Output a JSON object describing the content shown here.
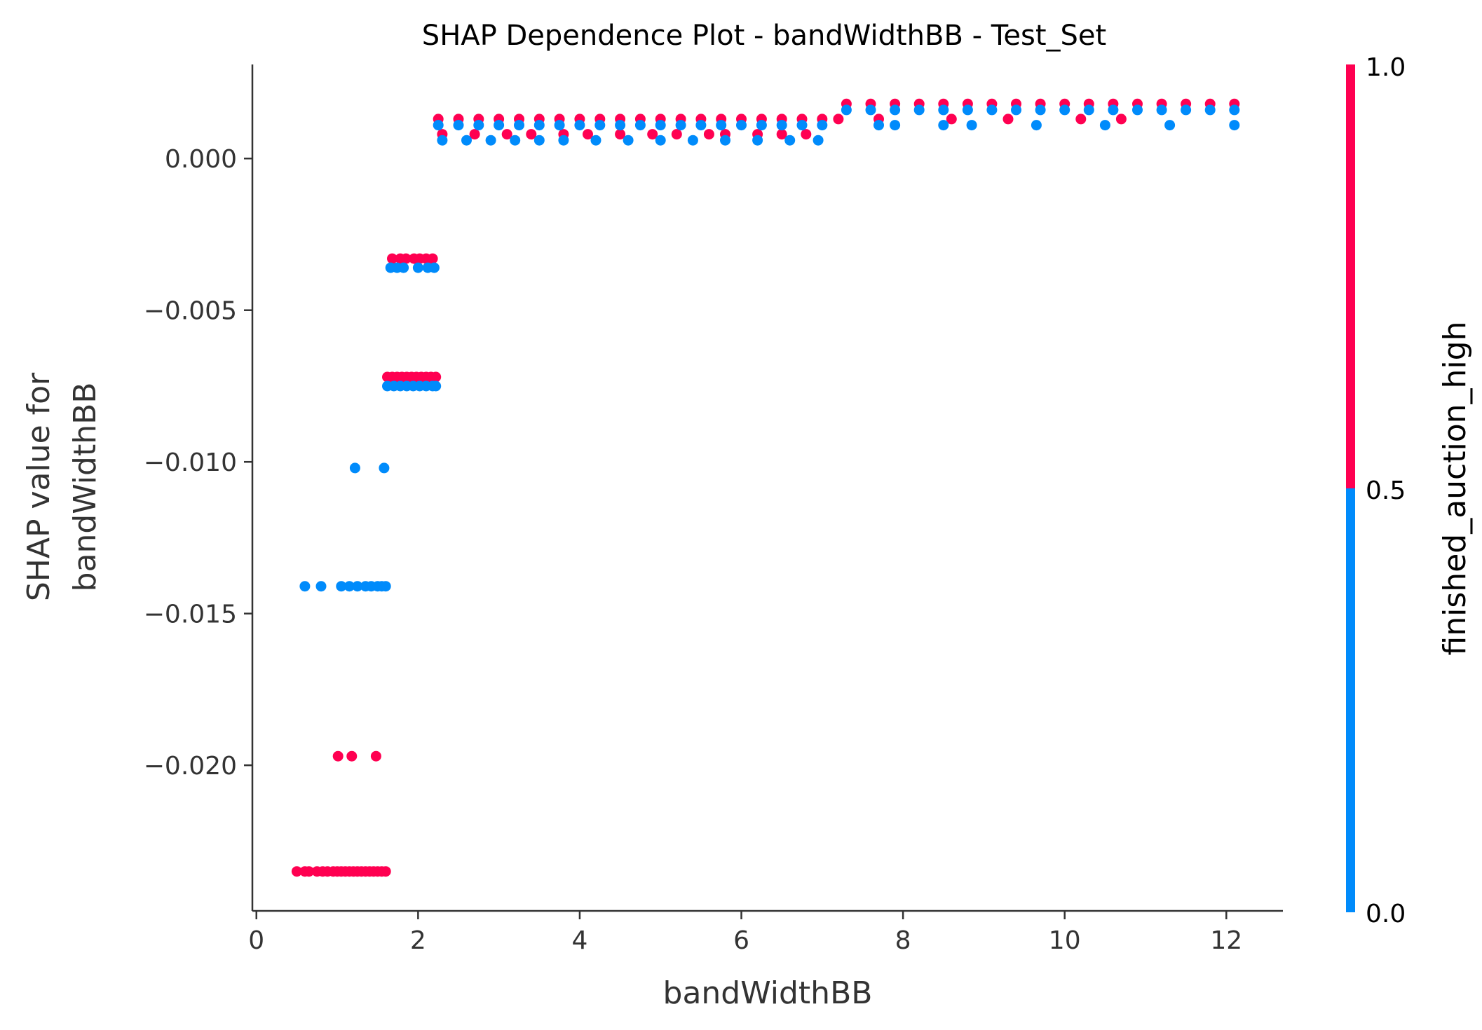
{
  "chart_data": {
    "type": "scatter",
    "title": "SHAP Dependence Plot - bandWidthBB - Test_Set",
    "xlabel": "bandWidthBB",
    "ylabel_lines": [
      "SHAP value for",
      "bandWidthBB"
    ],
    "xlim": [
      -0.05,
      12.7
    ],
    "ylim": [
      -0.0248,
      0.0031
    ],
    "xticks": [
      0,
      2,
      4,
      6,
      8,
      10,
      12
    ],
    "xtick_labels": [
      "0",
      "2",
      "4",
      "6",
      "8",
      "10",
      "12"
    ],
    "yticks": [
      0.0,
      -0.005,
      -0.01,
      -0.015,
      -0.02
    ],
    "ytick_labels": [
      "0.000",
      "−0.005",
      "−0.010",
      "−0.015",
      "−0.020"
    ],
    "grid": false,
    "colorbar": {
      "label": "finished_auction_high",
      "ticks": [
        "1.0",
        "0.5",
        "0.0"
      ],
      "low_color": "#008bfb",
      "high_color": "#ff0051"
    },
    "series": [
      {
        "name": "1.0",
        "color": "#ff0051",
        "points": [
          [
            0.5,
            -0.0235
          ],
          [
            0.6,
            -0.0235
          ],
          [
            0.65,
            -0.0235
          ],
          [
            0.75,
            -0.0235
          ],
          [
            0.82,
            -0.0235
          ],
          [
            0.88,
            -0.0235
          ],
          [
            0.95,
            -0.0235
          ],
          [
            1.0,
            -0.0235
          ],
          [
            1.05,
            -0.0235
          ],
          [
            1.1,
            -0.0235
          ],
          [
            1.15,
            -0.0235
          ],
          [
            1.2,
            -0.0235
          ],
          [
            1.25,
            -0.0235
          ],
          [
            1.3,
            -0.0235
          ],
          [
            1.35,
            -0.0235
          ],
          [
            1.4,
            -0.0235
          ],
          [
            1.45,
            -0.0235
          ],
          [
            1.5,
            -0.0235
          ],
          [
            1.55,
            -0.0235
          ],
          [
            1.6,
            -0.0235
          ],
          [
            1.01,
            -0.0197
          ],
          [
            1.18,
            -0.0197
          ],
          [
            1.48,
            -0.0197
          ],
          [
            1.62,
            -0.0072
          ],
          [
            1.68,
            -0.0072
          ],
          [
            1.74,
            -0.0072
          ],
          [
            1.8,
            -0.0072
          ],
          [
            1.86,
            -0.0072
          ],
          [
            1.92,
            -0.0072
          ],
          [
            1.98,
            -0.0072
          ],
          [
            2.04,
            -0.0072
          ],
          [
            2.1,
            -0.0072
          ],
          [
            2.16,
            -0.0072
          ],
          [
            2.22,
            -0.0072
          ],
          [
            1.68,
            -0.0033
          ],
          [
            1.78,
            -0.0033
          ],
          [
            1.85,
            -0.0033
          ],
          [
            1.95,
            -0.0033
          ],
          [
            2.02,
            -0.0033
          ],
          [
            2.1,
            -0.0033
          ],
          [
            2.18,
            -0.0033
          ],
          [
            2.25,
            0.0013
          ],
          [
            2.5,
            0.0013
          ],
          [
            2.75,
            0.0013
          ],
          [
            3.0,
            0.0013
          ],
          [
            3.25,
            0.0013
          ],
          [
            3.5,
            0.0013
          ],
          [
            3.75,
            0.0013
          ],
          [
            4.0,
            0.0013
          ],
          [
            4.25,
            0.0013
          ],
          [
            4.5,
            0.0013
          ],
          [
            4.75,
            0.0013
          ],
          [
            5.0,
            0.0013
          ],
          [
            5.25,
            0.0013
          ],
          [
            5.5,
            0.0013
          ],
          [
            5.75,
            0.0013
          ],
          [
            6.0,
            0.0013
          ],
          [
            6.25,
            0.0013
          ],
          [
            6.5,
            0.0013
          ],
          [
            6.75,
            0.0013
          ],
          [
            7.0,
            0.0013
          ],
          [
            7.2,
            0.0013
          ],
          [
            2.3,
            0.0008
          ],
          [
            2.7,
            0.0008
          ],
          [
            3.1,
            0.0008
          ],
          [
            3.4,
            0.0008
          ],
          [
            3.8,
            0.0008
          ],
          [
            4.1,
            0.0008
          ],
          [
            4.5,
            0.0008
          ],
          [
            4.9,
            0.0008
          ],
          [
            5.2,
            0.0008
          ],
          [
            5.6,
            0.0008
          ],
          [
            5.8,
            0.0008
          ],
          [
            6.2,
            0.0008
          ],
          [
            6.5,
            0.0008
          ],
          [
            6.8,
            0.0008
          ],
          [
            7.3,
            0.0018
          ],
          [
            7.6,
            0.0018
          ],
          [
            7.9,
            0.0018
          ],
          [
            8.2,
            0.0018
          ],
          [
            8.5,
            0.0018
          ],
          [
            8.8,
            0.0018
          ],
          [
            9.1,
            0.0018
          ],
          [
            9.4,
            0.0018
          ],
          [
            9.7,
            0.0018
          ],
          [
            10.0,
            0.0018
          ],
          [
            10.3,
            0.0018
          ],
          [
            10.6,
            0.0018
          ],
          [
            10.9,
            0.0018
          ],
          [
            11.2,
            0.0018
          ],
          [
            11.5,
            0.0018
          ],
          [
            11.8,
            0.0018
          ],
          [
            12.1,
            0.0018
          ],
          [
            7.7,
            0.0013
          ],
          [
            8.6,
            0.0013
          ],
          [
            9.3,
            0.0013
          ],
          [
            10.2,
            0.0013
          ],
          [
            10.7,
            0.0013
          ]
        ]
      },
      {
        "name": "0.0",
        "color": "#008bfb",
        "points": [
          [
            0.6,
            -0.0141
          ],
          [
            0.8,
            -0.0141
          ],
          [
            1.05,
            -0.0141
          ],
          [
            1.15,
            -0.0141
          ],
          [
            1.25,
            -0.0141
          ],
          [
            1.35,
            -0.0141
          ],
          [
            1.42,
            -0.0141
          ],
          [
            1.5,
            -0.0141
          ],
          [
            1.55,
            -0.0141
          ],
          [
            1.6,
            -0.0141
          ],
          [
            1.22,
            -0.0102
          ],
          [
            1.58,
            -0.0102
          ],
          [
            1.62,
            -0.0075
          ],
          [
            1.7,
            -0.0075
          ],
          [
            1.78,
            -0.0075
          ],
          [
            1.86,
            -0.0075
          ],
          [
            1.94,
            -0.0075
          ],
          [
            2.02,
            -0.0075
          ],
          [
            2.1,
            -0.0075
          ],
          [
            2.18,
            -0.0075
          ],
          [
            2.22,
            -0.0075
          ],
          [
            1.66,
            -0.0036
          ],
          [
            1.74,
            -0.0036
          ],
          [
            1.82,
            -0.0036
          ],
          [
            2.0,
            -0.0036
          ],
          [
            2.12,
            -0.0036
          ],
          [
            2.2,
            -0.0036
          ],
          [
            2.25,
            0.0011
          ],
          [
            2.5,
            0.0011
          ],
          [
            2.75,
            0.0011
          ],
          [
            3.0,
            0.0011
          ],
          [
            3.25,
            0.0011
          ],
          [
            3.5,
            0.0011
          ],
          [
            3.75,
            0.0011
          ],
          [
            4.0,
            0.0011
          ],
          [
            4.25,
            0.0011
          ],
          [
            4.5,
            0.0011
          ],
          [
            4.75,
            0.0011
          ],
          [
            5.0,
            0.0011
          ],
          [
            5.25,
            0.0011
          ],
          [
            5.5,
            0.0011
          ],
          [
            5.75,
            0.0011
          ],
          [
            6.0,
            0.0011
          ],
          [
            6.25,
            0.0011
          ],
          [
            6.5,
            0.0011
          ],
          [
            6.75,
            0.0011
          ],
          [
            7.0,
            0.0011
          ],
          [
            2.3,
            0.0006
          ],
          [
            2.6,
            0.0006
          ],
          [
            2.9,
            0.0006
          ],
          [
            3.2,
            0.0006
          ],
          [
            3.5,
            0.0006
          ],
          [
            3.8,
            0.0006
          ],
          [
            4.2,
            0.0006
          ],
          [
            4.6,
            0.0006
          ],
          [
            5.0,
            0.0006
          ],
          [
            5.4,
            0.0006
          ],
          [
            5.8,
            0.0006
          ],
          [
            6.2,
            0.0006
          ],
          [
            6.6,
            0.0006
          ],
          [
            6.95,
            0.0006
          ],
          [
            7.3,
            0.0016
          ],
          [
            7.6,
            0.0016
          ],
          [
            7.9,
            0.0016
          ],
          [
            8.2,
            0.0016
          ],
          [
            8.5,
            0.0016
          ],
          [
            8.8,
            0.0016
          ],
          [
            9.1,
            0.0016
          ],
          [
            9.4,
            0.0016
          ],
          [
            9.7,
            0.0016
          ],
          [
            10.0,
            0.0016
          ],
          [
            10.3,
            0.0016
          ],
          [
            10.6,
            0.0016
          ],
          [
            10.9,
            0.0016
          ],
          [
            11.2,
            0.0016
          ],
          [
            11.5,
            0.0016
          ],
          [
            11.8,
            0.0016
          ],
          [
            12.1,
            0.0016
          ],
          [
            7.7,
            0.0011
          ],
          [
            7.9,
            0.0011
          ],
          [
            8.5,
            0.0011
          ],
          [
            8.85,
            0.0011
          ],
          [
            9.65,
            0.0011
          ],
          [
            10.5,
            0.0011
          ],
          [
            11.3,
            0.0011
          ],
          [
            12.1,
            0.0011
          ]
        ]
      }
    ]
  }
}
